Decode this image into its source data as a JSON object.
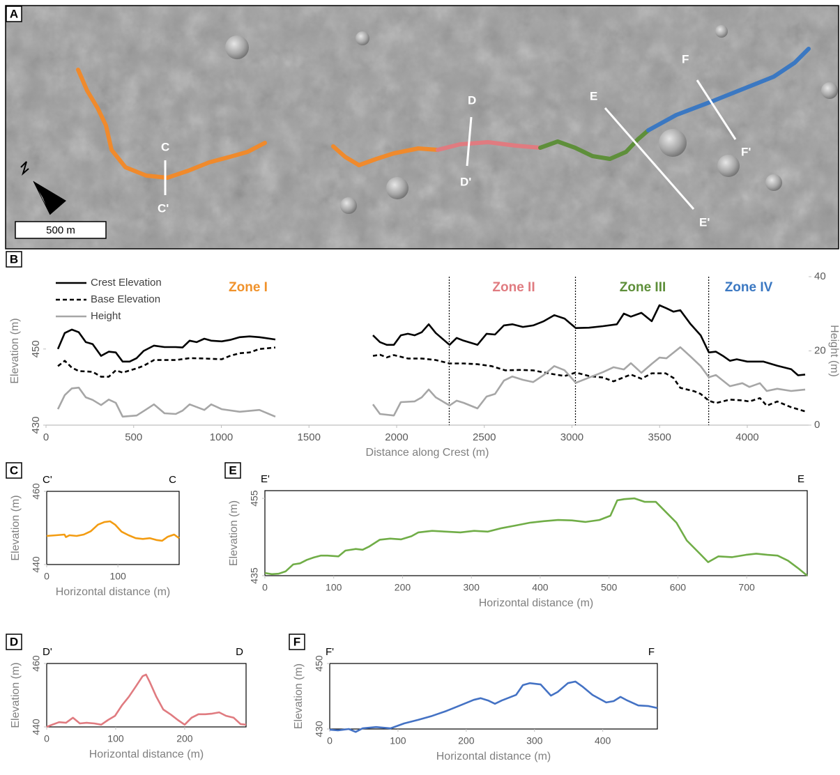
{
  "panels": [
    "A",
    "B",
    "C",
    "D",
    "E",
    "F"
  ],
  "map": {
    "profile_labels": [
      "C",
      "C'",
      "D",
      "D'",
      "E",
      "E'",
      "F",
      "F'"
    ],
    "scale": "500 m"
  },
  "chart_data": [
    {
      "type": "line",
      "x_label": "Distance along Crest (m)",
      "y_label": "Elevation (m)",
      "y2_label": "Height (m)",
      "xlim": [
        0,
        4350
      ],
      "xticks": [
        0,
        500,
        1000,
        1500,
        2000,
        2500,
        3000,
        3500,
        4000
      ],
      "ylim": [
        430,
        469
      ],
      "yticks": [
        430,
        450
      ],
      "y2lim": [
        0,
        40
      ],
      "y2ticks": [
        0,
        20,
        40
      ],
      "zones": [
        {
          "text": "Zone I",
          "color": "#f0922b"
        },
        {
          "text": "Zone II",
          "color": "#e07b80"
        },
        {
          "text": "Zone III",
          "color": "#5e8f3a"
        },
        {
          "text": "Zone IV",
          "color": "#3b78c2"
        }
      ],
      "zone_boundaries": [
        2300,
        3020,
        3780
      ],
      "series": [
        {
          "name": "Crest Elevation",
          "color": "#000000",
          "dash": false,
          "x": [
            68,
            107,
            147,
            187,
            227,
            266,
            314,
            358,
            398,
            437,
            477,
            517,
            557,
            616,
            676,
            740,
            779,
            819,
            859,
            903,
            942,
            1002,
            1050,
            1105,
            1161,
            1217,
            1308,
            null,
            1865,
            1905,
            1944,
            1984,
            2024,
            2064,
            2103,
            2143,
            2183,
            2223,
            2302,
            2342,
            2382,
            2461,
            2513,
            2561,
            2612,
            2660,
            2720,
            2779,
            2839,
            2899,
            2958,
            3022,
            3097,
            3177,
            3256,
            3296,
            3336,
            3396,
            3455,
            3499,
            3539,
            3579,
            3618,
            3674,
            3734,
            3781,
            3821,
            3861,
            3901,
            3940,
            4000,
            4091,
            4171,
            4250,
            4290,
            4330
          ],
          "values": [
            450.0,
            454.2,
            455.1,
            454.4,
            451.8,
            451.3,
            448.2,
            449.3,
            449.1,
            446.7,
            446.7,
            447.6,
            449.5,
            450.9,
            450.5,
            450.5,
            450.4,
            452.2,
            451.8,
            452.7,
            452.2,
            452.0,
            452.4,
            453.1,
            453.3,
            453.1,
            452.5,
            null,
            453.6,
            451.8,
            451.1,
            451.1,
            453.6,
            454.0,
            453.6,
            454.4,
            456.5,
            454.2,
            451.1,
            452.9,
            452.2,
            451.1,
            454.0,
            453.8,
            456.2,
            456.5,
            455.8,
            456.2,
            457.3,
            458.9,
            458.0,
            455.5,
            455.6,
            456.0,
            456.5,
            459.3,
            458.5,
            459.5,
            457.3,
            461.5,
            460.7,
            459.8,
            460.2,
            456.7,
            453.6,
            449.1,
            449.3,
            448.2,
            446.9,
            447.3,
            446.7,
            446.7,
            445.6,
            444.7,
            443.1,
            443.3
          ]
        },
        {
          "name": "Base Elevation",
          "color": "#000000",
          "dash": true,
          "x": [
            68,
            107,
            147,
            187,
            266,
            314,
            358,
            398,
            437,
            517,
            557,
            616,
            676,
            740,
            819,
            903,
            1002,
            1050,
            1105,
            1161,
            1217,
            1308,
            null,
            1865,
            1905,
            1944,
            1984,
            2064,
            2143,
            2223,
            2302,
            2382,
            2461,
            2541,
            2620,
            2700,
            2779,
            2879,
            2958,
            3022,
            3097,
            3177,
            3237,
            3336,
            3396,
            3455,
            3535,
            3579,
            3618,
            3698,
            3734,
            3781,
            3821,
            3901,
            3972,
            4012,
            4072,
            4111,
            4171,
            4250,
            4330
          ],
          "values": [
            445.5,
            446.9,
            445.1,
            444.2,
            444.0,
            442.7,
            442.7,
            444.4,
            443.8,
            444.9,
            445.6,
            447.1,
            447.1,
            447.1,
            447.6,
            447.5,
            447.3,
            448.2,
            448.9,
            449.1,
            450.0,
            450.4,
            null,
            448.2,
            448.5,
            447.8,
            448.4,
            447.5,
            447.5,
            447.1,
            446.2,
            446.2,
            446.0,
            445.5,
            444.4,
            444.5,
            444.4,
            443.5,
            442.9,
            443.8,
            442.9,
            442.5,
            441.5,
            443.3,
            442.2,
            443.6,
            443.6,
            442.4,
            439.8,
            438.9,
            438.2,
            436.4,
            435.8,
            436.7,
            436.5,
            436.2,
            437.1,
            435.1,
            436.2,
            434.7,
            433.6
          ]
        },
        {
          "name": "Height",
          "color": "#a6a6a6",
          "dash": false,
          "axis": "y2",
          "x": [
            68,
            107,
            147,
            187,
            227,
            266,
            314,
            358,
            398,
            437,
            517,
            557,
            616,
            676,
            740,
            779,
            819,
            903,
            942,
            1002,
            1105,
            1217,
            1308,
            null,
            1865,
            1905,
            1984,
            2024,
            2103,
            2143,
            2183,
            2223,
            2302,
            2342,
            2382,
            2461,
            2513,
            2561,
            2612,
            2660,
            2720,
            2779,
            2839,
            2899,
            2958,
            3022,
            3097,
            3177,
            3237,
            3296,
            3336,
            3396,
            3455,
            3499,
            3539,
            3618,
            3674,
            3734,
            3781,
            3821,
            3901,
            3972,
            4012,
            4072,
            4111,
            4171,
            4250,
            4330
          ],
          "values": [
            4.3,
            8.1,
            9.9,
            10.1,
            7.5,
            6.8,
            5.4,
            6.9,
            6.0,
            2.3,
            2.6,
            3.8,
            5.6,
            3.2,
            3.0,
            3.9,
            5.6,
            4.1,
            5.6,
            4.3,
            3.6,
            4.1,
            2.3,
            null,
            5.6,
            3.0,
            2.6,
            6.2,
            6.4,
            7.5,
            9.6,
            7.5,
            5.3,
            6.6,
            6.0,
            4.5,
            7.7,
            8.4,
            12.0,
            13.1,
            12.2,
            11.6,
            13.5,
            15.9,
            14.8,
            11.4,
            12.8,
            14.3,
            15.6,
            15.0,
            16.7,
            14.1,
            16.5,
            18.2,
            18.0,
            21.0,
            18.6,
            15.9,
            12.9,
            13.5,
            10.5,
            11.3,
            10.3,
            11.3,
            9.2,
            9.8,
            9.2,
            9.6
          ]
        }
      ]
    },
    {
      "type": "line",
      "start_label": "C'",
      "end_label": "C",
      "x_label": "Horizontal distance (m)",
      "y_label": "Elevation (m)",
      "xlim": [
        0,
        186
      ],
      "xticks": [
        0,
        100
      ],
      "ylim": [
        440,
        460
      ],
      "yticks": [
        440,
        460
      ],
      "x": [
        0,
        13,
        25,
        27,
        32,
        42,
        52,
        62,
        72,
        81,
        89,
        96,
        105,
        115,
        125,
        135,
        145,
        154,
        162,
        170,
        179,
        186
      ],
      "series": [
        {
          "color": "#f39c12",
          "values": [
            447.8,
            448.0,
            448.2,
            447.5,
            448.0,
            447.8,
            448.2,
            449.1,
            450.9,
            451.6,
            451.8,
            450.9,
            449.0,
            448.0,
            447.2,
            447.0,
            447.2,
            446.7,
            446.5,
            447.6,
            448.2,
            447.2
          ]
        }
      ]
    },
    {
      "type": "line",
      "start_label": "D'",
      "end_label": "D",
      "x_label": "Horizontal distance (m)",
      "y_label": "Elevation (m)",
      "xlim": [
        0,
        289
      ],
      "xticks": [
        0,
        100,
        200
      ],
      "ylim": [
        440,
        460
      ],
      "yticks": [
        440,
        460
      ],
      "x": [
        0,
        8,
        18,
        28,
        38,
        48,
        58,
        69,
        79,
        89,
        99,
        109,
        119,
        129,
        139,
        144,
        149,
        159,
        169,
        180,
        190,
        200,
        210,
        220,
        230,
        240,
        250,
        260,
        271,
        281,
        289
      ],
      "series": [
        {
          "color": "#e07b80",
          "values": [
            440.0,
            440.7,
            441.5,
            441.3,
            442.9,
            441.1,
            441.3,
            441.1,
            440.7,
            442.2,
            443.5,
            446.8,
            449.5,
            452.7,
            456.0,
            456.5,
            454.3,
            449.5,
            445.5,
            443.9,
            442.2,
            440.7,
            442.9,
            444.0,
            444.0,
            444.2,
            444.6,
            443.5,
            442.9,
            440.9,
            440.7
          ]
        }
      ]
    },
    {
      "type": "line",
      "start_label": "E'",
      "end_label": "E",
      "x_label": "Horizontal distance (m)",
      "y_label": "Elevation (m)",
      "xlim": [
        0,
        788
      ],
      "xticks": [
        0,
        100,
        200,
        300,
        400,
        500,
        600,
        700
      ],
      "ylim": [
        435,
        457
      ],
      "yticks": [
        435,
        455
      ],
      "x": [
        0,
        10,
        20,
        30,
        41,
        51,
        61,
        71,
        81,
        91,
        107,
        117,
        132,
        142,
        152,
        167,
        182,
        198,
        213,
        223,
        243,
        263,
        284,
        304,
        324,
        344,
        365,
        385,
        405,
        426,
        446,
        466,
        486,
        502,
        512,
        522,
        537,
        552,
        568,
        583,
        598,
        613,
        633,
        644,
        659,
        679,
        699,
        714,
        730,
        745,
        760,
        775,
        788
      ],
      "series": [
        {
          "color": "#70ad47",
          "values": [
            435.7,
            435.4,
            435.5,
            436.1,
            437.9,
            438.2,
            439.1,
            439.7,
            440.2,
            440.2,
            440.0,
            441.5,
            441.9,
            441.7,
            442.6,
            444.3,
            444.6,
            444.4,
            445.2,
            446.2,
            446.6,
            446.4,
            446.2,
            446.6,
            446.4,
            447.3,
            448.0,
            448.7,
            449.1,
            449.4,
            449.3,
            448.9,
            449.4,
            450.5,
            454.5,
            454.8,
            455.0,
            454.1,
            454.1,
            451.4,
            448.7,
            444.1,
            440.5,
            438.5,
            440.0,
            439.8,
            440.4,
            440.7,
            440.4,
            440.2,
            438.9,
            436.9,
            435.0
          ]
        }
      ]
    },
    {
      "type": "line",
      "start_label": "F'",
      "end_label": "F",
      "x_label": "Horizontal distance (m)",
      "y_label": "Elevation (m)",
      "xlim": [
        0,
        480
      ],
      "xticks": [
        0,
        100,
        200,
        300,
        400
      ],
      "ylim": [
        430,
        450
      ],
      "yticks": [
        430,
        450
      ],
      "x": [
        0,
        12,
        28,
        38,
        48,
        68,
        89,
        109,
        130,
        150,
        171,
        191,
        211,
        221,
        232,
        242,
        252,
        273,
        283,
        293,
        309,
        324,
        334,
        349,
        360,
        370,
        385,
        405,
        416,
        426,
        436,
        452,
        467,
        480
      ],
      "series": [
        {
          "color": "#4472c4",
          "values": [
            429.8,
            429.6,
            430.0,
            429.1,
            430.2,
            430.6,
            430.2,
            431.7,
            432.8,
            434.0,
            435.5,
            437.2,
            438.9,
            439.4,
            438.7,
            437.7,
            438.7,
            440.4,
            443.4,
            444.0,
            443.6,
            440.2,
            441.3,
            444.0,
            444.5,
            443.0,
            440.4,
            438.1,
            438.5,
            439.8,
            438.7,
            437.2,
            437.0,
            436.4
          ]
        }
      ]
    }
  ]
}
